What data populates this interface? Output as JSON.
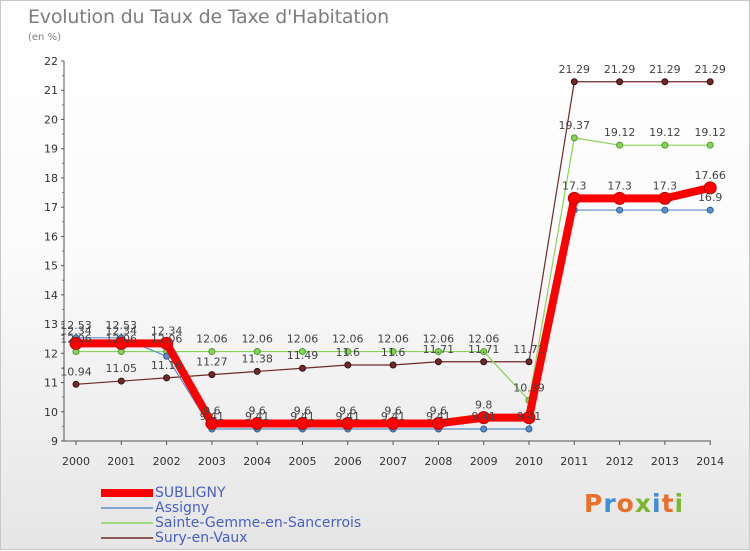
{
  "title": "Evolution du Taux de Taxe d'Habitation",
  "subtitle": "(en %)",
  "logo": {
    "text": "Proxiti",
    "letter_colors": [
      "#e8702a",
      "#3c8fd8",
      "#e8702a",
      "#7cb82f",
      "#3c8fd8",
      "#e8702a",
      "#7cb82f"
    ]
  },
  "chart_data": {
    "type": "line",
    "title": "Evolution du Taux de Taxe d'Habitation",
    "ylabel": "(en %)",
    "xlabel": "",
    "x": [
      "2000",
      "2001",
      "2002",
      "2003",
      "2004",
      "2005",
      "2006",
      "2007",
      "2008",
      "2009",
      "2010",
      "2011",
      "2012",
      "2013",
      "2014"
    ],
    "ylim": [
      9,
      22
    ],
    "yticks": [
      9,
      10,
      11,
      12,
      13,
      14,
      15,
      16,
      17,
      18,
      19,
      20,
      21,
      22
    ],
    "grid": false,
    "legend_position": "bottom-left",
    "series": [
      {
        "name": "SUBLIGNY",
        "color": "#ff0000",
        "values": [
          12.34,
          12.34,
          12.34,
          9.6,
          9.6,
          9.6,
          9.6,
          9.6,
          9.6,
          9.8,
          9.8,
          17.3,
          17.3,
          17.3,
          17.66
        ],
        "labels": [
          "12.34",
          "12.34",
          "12.34",
          "9.6",
          "9.6",
          "9.6",
          "9.6",
          "9.6",
          "9.6",
          "9.8",
          "",
          "17.3",
          "17.3",
          "17.3",
          "17.66"
        ]
      },
      {
        "name": "Assigny",
        "color": "#5b8fc9",
        "values": [
          12.53,
          12.53,
          11.9,
          9.41,
          9.41,
          9.41,
          9.41,
          9.41,
          9.41,
          9.41,
          9.41,
          16.9,
          16.9,
          16.9,
          16.9
        ],
        "labels": [
          "12.53",
          "12.53",
          "",
          "9.41",
          "9.41",
          "9.41",
          "9.41",
          "9.41",
          "9.41",
          "9.41",
          "9.41",
          "",
          "",
          "",
          "16.9"
        ]
      },
      {
        "name": "Sainte-Gemme-en-Sancerrois",
        "color": "#88d458",
        "values": [
          12.06,
          12.06,
          12.06,
          12.06,
          12.06,
          12.06,
          12.06,
          12.06,
          12.06,
          12.06,
          10.39,
          19.37,
          19.12,
          19.12,
          19.12
        ],
        "labels": [
          "12.06",
          "12.06",
          "12.06",
          "12.06",
          "12.06",
          "12.06",
          "12.06",
          "12.06",
          "12.06",
          "12.06",
          "10.39",
          "19.37",
          "19.12",
          "19.12",
          "19.12"
        ]
      },
      {
        "name": "Sury-en-Vaux",
        "color": "#6e2a2a",
        "values": [
          10.94,
          11.05,
          11.16,
          11.27,
          11.38,
          11.49,
          11.6,
          11.6,
          11.71,
          11.71,
          11.71,
          21.29,
          21.29,
          21.29,
          21.29
        ],
        "labels": [
          "10.94",
          "11.05",
          "11.16",
          "11.27",
          "11.38",
          "11.49",
          "11.6",
          "11.6",
          "11.71",
          "11.71",
          "11.71",
          "21.29",
          "21.29",
          "21.29",
          "21.29"
        ]
      }
    ]
  }
}
